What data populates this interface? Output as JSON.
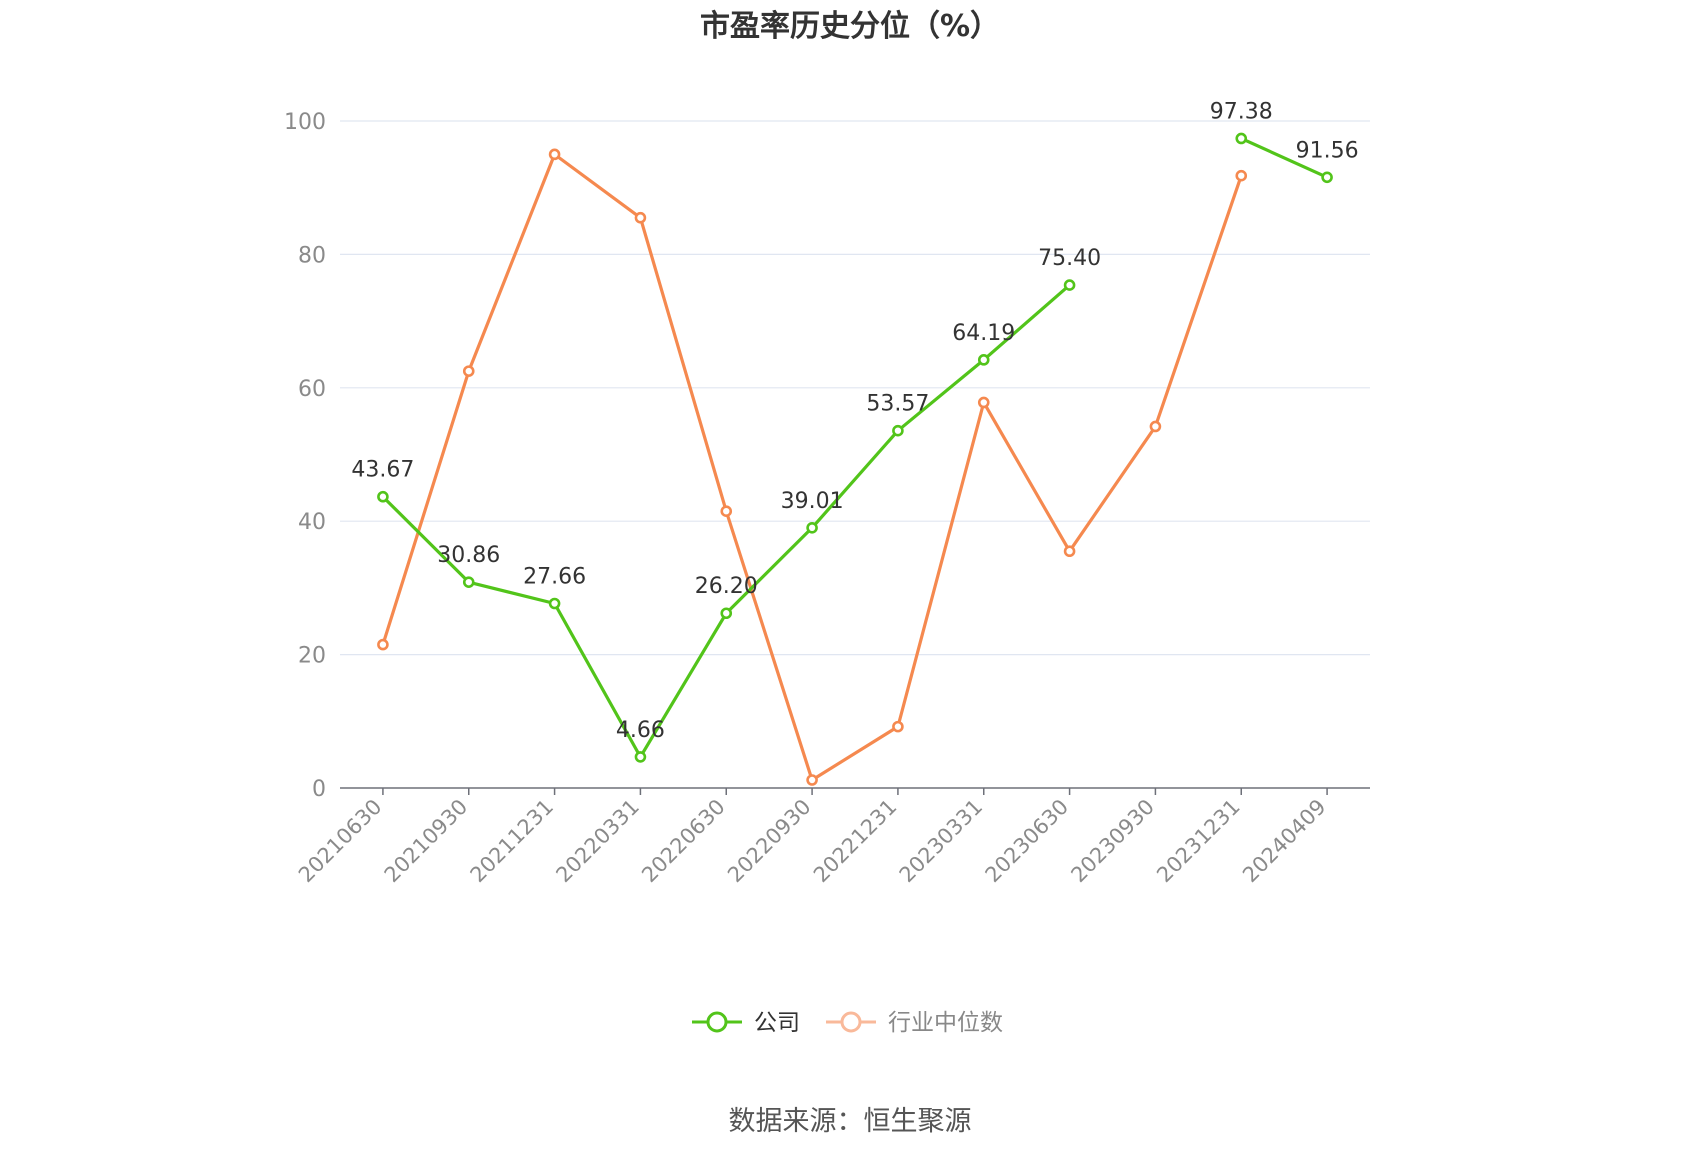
{
  "chart_data": {
    "type": "line",
    "title": "市盈率历史分位（%）",
    "xlabel": "",
    "ylabel": "",
    "ylim": [
      0,
      100
    ],
    "yticks": [
      0,
      20,
      40,
      60,
      80,
      100
    ],
    "grid": true,
    "legend_position": "bottom-center",
    "categories": [
      "20210630",
      "20210930",
      "20211231",
      "20220331",
      "20220630",
      "20220930",
      "20221231",
      "20230331",
      "20230630",
      "20230930",
      "20231231",
      "20240409"
    ],
    "series": [
      {
        "name": "公司",
        "color": "#52c41a",
        "values": [
          43.67,
          30.86,
          27.66,
          4.66,
          26.2,
          39.01,
          53.57,
          64.19,
          75.4,
          null,
          97.38,
          91.56
        ],
        "labels": [
          "43.67",
          "30.86",
          "27.66",
          "4.66",
          "26.20",
          "39.01",
          "53.57",
          "64.19",
          "75.40",
          "",
          "97.38",
          "91.56"
        ]
      },
      {
        "name": "行业中位数",
        "color": "#f5894f",
        "values": [
          21.5,
          62.5,
          95.0,
          85.5,
          41.5,
          1.2,
          9.2,
          57.8,
          35.5,
          54.2,
          91.8,
          null
        ],
        "labels": []
      }
    ],
    "source": "数据来源：恒生聚源"
  }
}
